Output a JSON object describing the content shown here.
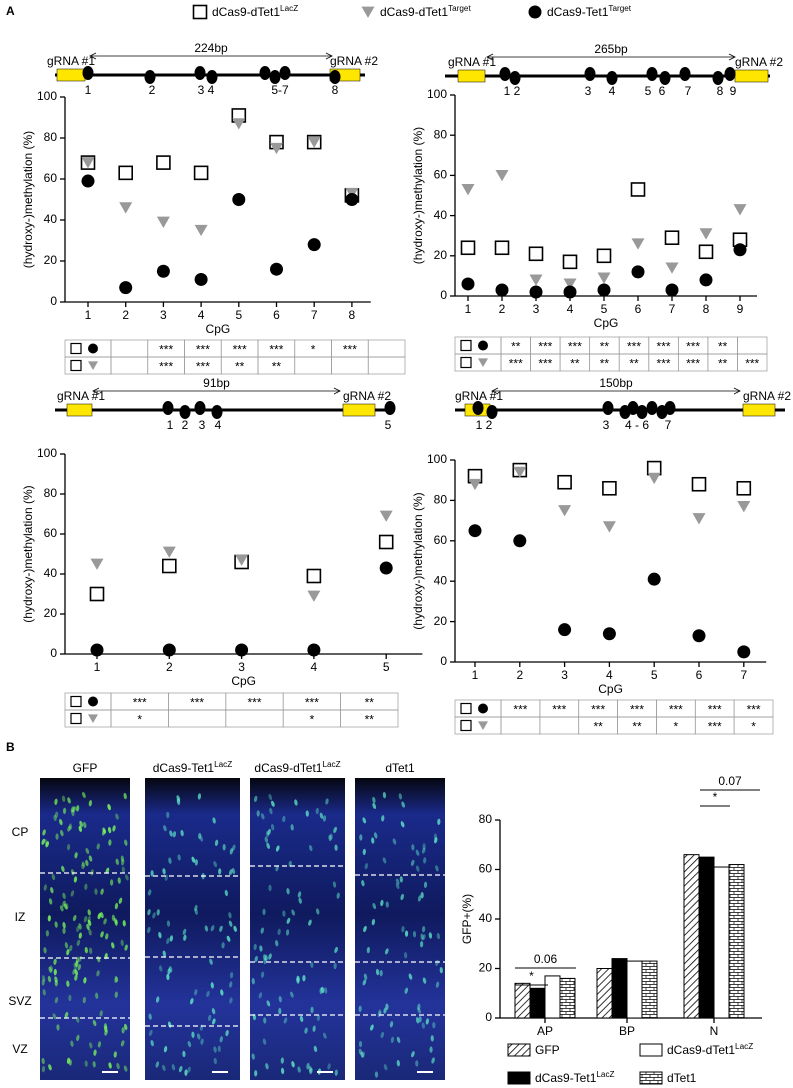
{
  "figure": {
    "panel_labels": [
      "A",
      "B"
    ]
  },
  "chart_data": [
    {
      "type": "scatter",
      "diagram": {
        "length": "224bp",
        "grna_left": "gRNA #1",
        "grna_right": "gRNA #2",
        "site_labels": [
          "1",
          "2",
          "3 4",
          "5-7",
          "8"
        ]
      },
      "y_label": "(hydroxy-)methylation (%)",
      "x_label": "CpG",
      "categories": [
        "1",
        "2",
        "3",
        "4",
        "5",
        "6",
        "7",
        "8"
      ],
      "ylim": [
        0,
        100
      ],
      "yticks": [
        0,
        20,
        40,
        60,
        80,
        100
      ],
      "series": [
        {
          "name": "dCas9-dTet1",
          "name_sup": "LacZ",
          "marker": "square",
          "color": "#000000",
          "values": [
            68,
            63,
            68,
            63,
            91,
            78,
            78,
            52
          ]
        },
        {
          "name": "dCas9-dTet1",
          "name_sup": "Target",
          "marker": "triangle",
          "color": "#999999",
          "values": [
            68,
            46,
            39,
            35,
            87,
            75,
            78,
            53
          ]
        },
        {
          "name": "dCas9-Tet1",
          "name_sup": "Target",
          "marker": "circle",
          "color": "#000000",
          "values": [
            59,
            7,
            15,
            11,
            50,
            16,
            28,
            50
          ]
        }
      ],
      "significance": [
        [
          null,
          "***",
          "***",
          "***",
          "***",
          "*",
          "***",
          null
        ],
        [
          null,
          "***",
          "***",
          "**",
          "**",
          null,
          null,
          null
        ]
      ]
    },
    {
      "type": "scatter",
      "diagram": {
        "length": "265bp",
        "grna_left": "gRNA #1",
        "grna_right": "gRNA #2",
        "site_labels": [
          "1 2",
          "3",
          "4",
          "5",
          "6",
          "7",
          "8",
          "9"
        ]
      },
      "y_label": "(hydroxy-)methylation (%)",
      "x_label": "CpG",
      "categories": [
        "1",
        "2",
        "3",
        "4",
        "5",
        "6",
        "7",
        "8",
        "9"
      ],
      "ylim": [
        0,
        100
      ],
      "yticks": [
        0,
        20,
        40,
        60,
        80,
        100
      ],
      "series": [
        {
          "name": "dCas9-dTet1",
          "name_sup": "LacZ",
          "marker": "square",
          "color": "#000000",
          "values": [
            24,
            24,
            21,
            17,
            20,
            53,
            29,
            22,
            28
          ]
        },
        {
          "name": "dCas9-dTet1",
          "name_sup": "Target",
          "marker": "triangle",
          "color": "#999999",
          "values": [
            53,
            60,
            8,
            6,
            9,
            26,
            14,
            31,
            43
          ]
        },
        {
          "name": "dCas9-Tet1",
          "name_sup": "Target",
          "marker": "circle",
          "color": "#000000",
          "values": [
            6,
            3,
            2,
            2,
            3,
            12,
            3,
            8,
            23
          ]
        }
      ],
      "significance": [
        [
          "**",
          "***",
          "***",
          "**",
          "***",
          "***",
          "***",
          "**",
          null
        ],
        [
          "***",
          "***",
          "**",
          "**",
          "**",
          "***",
          "***",
          "**",
          "***"
        ]
      ]
    },
    {
      "type": "scatter",
      "diagram": {
        "length": "91bp",
        "grna_left": "gRNA #1",
        "grna_right": "gRNA #2",
        "site_labels": [
          "1",
          "2",
          "3",
          "4",
          "5"
        ]
      },
      "y_label": "(hydroxy-)methylation (%)",
      "x_label": "CpG",
      "categories": [
        "1",
        "2",
        "3",
        "4",
        "5"
      ],
      "ylim": [
        0,
        100
      ],
      "yticks": [
        0,
        20,
        40,
        60,
        80,
        100
      ],
      "series": [
        {
          "name": "dCas9-dTet1",
          "name_sup": "LacZ",
          "marker": "square",
          "color": "#000000",
          "values": [
            30,
            44,
            46,
            39,
            56
          ]
        },
        {
          "name": "dCas9-dTet1",
          "name_sup": "Target",
          "marker": "triangle",
          "color": "#999999",
          "values": [
            45,
            51,
            47,
            29,
            69
          ]
        },
        {
          "name": "dCas9-Tet1",
          "name_sup": "Target",
          "marker": "circle",
          "color": "#000000",
          "values": [
            2,
            2,
            2,
            2,
            43
          ]
        }
      ],
      "significance": [
        [
          "***",
          "***",
          "***",
          "***",
          "**"
        ],
        [
          "*",
          null,
          null,
          "*",
          "**"
        ]
      ]
    },
    {
      "type": "scatter",
      "diagram": {
        "length": "150bp",
        "grna_left": "gRNA #1",
        "grna_right": "gRNA #2",
        "site_labels": [
          "1 2",
          "3",
          "4 - 6",
          "7"
        ]
      },
      "y_label": "(hydroxy-)methylation (%)",
      "x_label": "CpG",
      "categories": [
        "1",
        "2",
        "3",
        "4",
        "5",
        "6",
        "7"
      ],
      "ylim": [
        0,
        100
      ],
      "yticks": [
        0,
        20,
        40,
        60,
        80,
        100
      ],
      "series": [
        {
          "name": "dCas9-dTet1",
          "name_sup": "LacZ",
          "marker": "square",
          "color": "#000000",
          "values": [
            92,
            95,
            89,
            86,
            96,
            88,
            86
          ]
        },
        {
          "name": "dCas9-dTet1",
          "name_sup": "Target",
          "marker": "triangle",
          "color": "#999999",
          "values": [
            88,
            94,
            75,
            67,
            91,
            71,
            77
          ]
        },
        {
          "name": "dCas9-Tet1",
          "name_sup": "Target",
          "marker": "circle",
          "color": "#000000",
          "values": [
            65,
            60,
            16,
            14,
            41,
            13,
            5
          ]
        }
      ],
      "significance": [
        [
          "***",
          "***",
          "***",
          "***",
          "***",
          "***",
          "***"
        ],
        [
          null,
          null,
          "**",
          "**",
          "*",
          "***",
          "*"
        ]
      ]
    },
    {
      "type": "bar",
      "y_label": "GFP+(%)",
      "categories": [
        "AP",
        "BP",
        "N"
      ],
      "ylim": [
        0,
        80
      ],
      "yticks": [
        0,
        20,
        40,
        60,
        80
      ],
      "series": [
        {
          "name": "GFP",
          "fill": "hatch",
          "values": [
            14,
            20,
            66
          ]
        },
        {
          "name": "dCas9-Tet1",
          "name_sup": "LacZ",
          "fill": "black",
          "values": [
            12,
            24,
            65
          ]
        },
        {
          "name": "dCas9-dTet1",
          "name_sup": "LacZ",
          "fill": "white",
          "values": [
            17,
            23,
            61
          ]
        },
        {
          "name": "dTet1",
          "fill": "brick",
          "values": [
            16,
            23,
            62
          ]
        }
      ],
      "annotations": [
        "0.06",
        "*",
        "0.07",
        "*"
      ]
    }
  ],
  "images": {
    "columns": [
      {
        "name": "GFP"
      },
      {
        "name": "dCas9-Tet1",
        "name_sup": "LacZ"
      },
      {
        "name": "dCas9-dTet1",
        "name_sup": "LacZ"
      },
      {
        "name": "dTet1"
      }
    ],
    "zones": [
      "CP",
      "IZ",
      "SVZ",
      "VZ"
    ]
  }
}
